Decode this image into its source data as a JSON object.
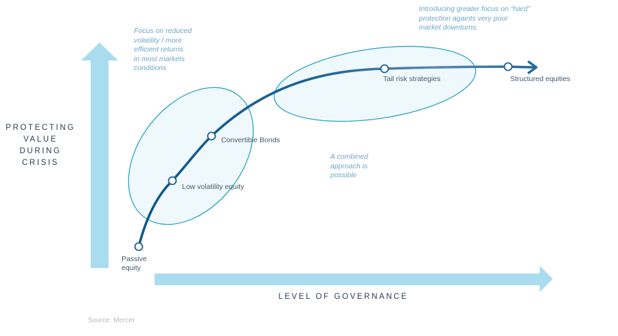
{
  "axes": {
    "y_label": "PROTECTING\nVALUE\nDURING\nCRISIS",
    "x_label": "LEVEL OF GOVERNANCE"
  },
  "notes": {
    "reduced_volatility": "Focus on reduced\nvolatility / more\nefficient returns\nin  most markets\nconditions",
    "hard_protection": "Introducing greater focus on “hard”\nprotection againts very poor\nmarket downturns.",
    "combined": "A combined\napproach is\npossible"
  },
  "points": [
    {
      "label": "Passive\nequity"
    },
    {
      "label": "Low volatility equity"
    },
    {
      "label": "Convertible Bonds"
    },
    {
      "label": "Tail risk strategies"
    },
    {
      "label": "Structured equities"
    }
  ],
  "source": "Source: Mercer",
  "colors": {
    "arrow_fill": "#a8dcee",
    "curve": "#1a5f8f",
    "ellipse_stroke": "#2aa3c6",
    "ellipse_fill": "#e9f6fb",
    "note_text": "#6fa6c8"
  }
}
